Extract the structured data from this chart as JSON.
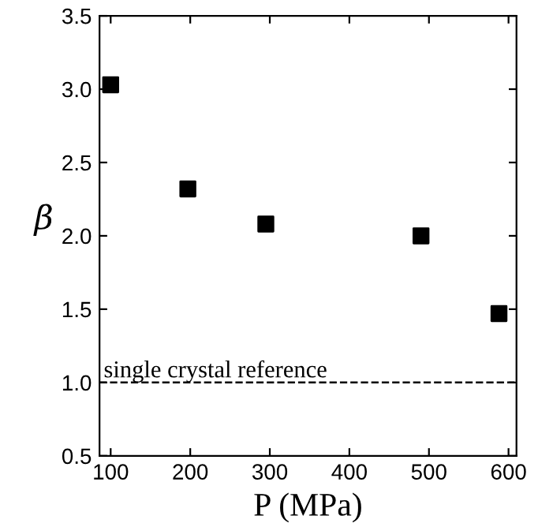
{
  "chart_data": {
    "type": "scatter",
    "xlabel": "P (MPa)",
    "ylabel": "β",
    "x": [
      100,
      197,
      295,
      490,
      588
    ],
    "series": [
      {
        "color": "#000000",
        "values": [
          3.03,
          2.32,
          2.08,
          2.0,
          1.47
        ]
      }
    ],
    "marker": "square",
    "xlim": [
      86,
      610
    ],
    "ylim": [
      0.5,
      3.5
    ],
    "xticks": [
      100,
      200,
      300,
      400,
      500,
      600
    ],
    "yticks": [
      {
        "value": 0.5,
        "label": "0.5"
      },
      {
        "value": 1.0,
        "label": "1.0"
      },
      {
        "value": 1.5,
        "label": "1.5"
      },
      {
        "value": 2.0,
        "label": "2.0"
      },
      {
        "value": 2.5,
        "label": "2.5"
      },
      {
        "value": 3.0,
        "label": "3.0"
      },
      {
        "value": 3.5,
        "label": "3.5"
      }
    ],
    "ref_lines": [
      {
        "axis": "y",
        "value": 1.0,
        "label": "single crystal reference",
        "color": "#000000",
        "line_style": "dashed"
      }
    ],
    "grid": false,
    "legend": false
  }
}
